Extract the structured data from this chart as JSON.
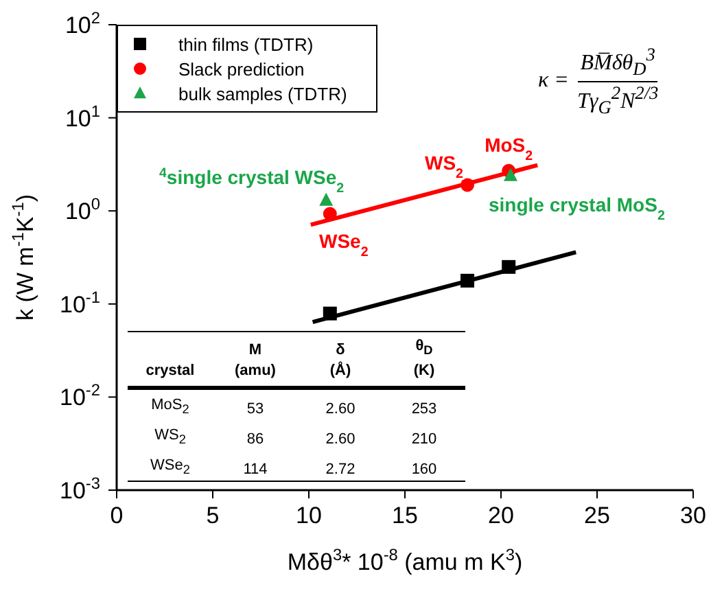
{
  "chart_data": {
    "type": "scatter",
    "xlabel": "Mδθ$^{3}$* 10$^{-8}$ (amu m K$^{3}$)",
    "ylabel": "k (W m$^{-1}$K$^{-1}$)",
    "xlim": [
      0,
      30
    ],
    "xticks": [
      0,
      5,
      10,
      15,
      20,
      25,
      30
    ],
    "ylim": [
      0.001,
      100
    ],
    "yticks": [
      {
        "value": 0.001,
        "label": "10$^{-3}$"
      },
      {
        "value": 0.01,
        "label": "10$^{-2}$"
      },
      {
        "value": 0.1,
        "label": "10$^{-1}$"
      },
      {
        "value": 1,
        "label": "10$^{0}$"
      },
      {
        "value": 10,
        "label": "10$^{1}$"
      },
      {
        "value": 100,
        "label": "10$^{2}$"
      }
    ],
    "log": "y",
    "legend": "top left",
    "series": [
      {
        "name": "thin films (TDTR)",
        "type": "scatter",
        "color": "#000000",
        "marker": "square",
        "x": [
          11.1,
          18.25,
          20.4
        ],
        "values": [
          0.079,
          0.178,
          0.25
        ]
      },
      {
        "name": "Slack prediction",
        "type": "scatter",
        "color": "#ff0000",
        "marker": "circle",
        "x": [
          11.1,
          18.25,
          20.4
        ],
        "values": [
          0.93,
          1.9,
          2.7
        ]
      },
      {
        "name": "bulk samples (TDTR)",
        "type": "scatter",
        "color": "#1aa64a",
        "marker": "triangle",
        "x": [
          10.9,
          20.5
        ],
        "values": [
          1.3,
          2.4
        ]
      },
      {
        "type": "line",
        "color": "#000000",
        "x": [
          10.2,
          23.9
        ],
        "values": [
          0.064,
          0.36
        ]
      },
      {
        "type": "line",
        "color": "#ff0000",
        "x": [
          10.1,
          21.9
        ],
        "values": [
          0.71,
          3.1
        ]
      }
    ],
    "annotations": [
      {
        "text": "$^{4}$single crystal WSe$_{2}$",
        "x": 10.9,
        "y": 1.3
      },
      {
        "text": "single crystal MoS$_{2}$",
        "x": 20.5,
        "y": 2.4
      },
      {
        "text": "WSe$_{2}$",
        "x": 11.1,
        "y": 0.93
      },
      {
        "text": "WS$_{2}$",
        "x": 18.25,
        "y": 1.9
      },
      {
        "text": "MoS$_{2}$",
        "x": 20.4,
        "y": 2.7
      },
      "κ =",
      "BM̅δθ$_{D}$$^{3}$",
      "Tγ$_{G}$$^{2}$N$^{2/3}$",
      "crystal",
      "M (amu)",
      "δ (Å)",
      "θ$_{D}$ (K)",
      "MoS$_{2}$",
      "53",
      "2.60",
      "253",
      "WS$_{2}$",
      "86",
      "2.60",
      "210",
      "WSe$_{2}$",
      "114",
      "2.72",
      "160"
    ]
  }
}
